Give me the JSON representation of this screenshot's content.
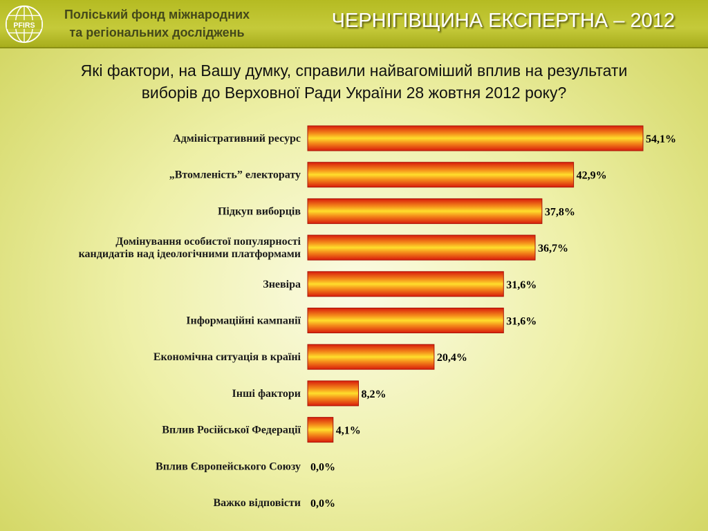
{
  "header": {
    "org_line1": "Поліський фонд міжнародних",
    "org_line2": "та регіональних досліджень",
    "logo_text": "PFIRS",
    "title": "ЧЕРНІГІВЩИНА ЕКСПЕРТНА – 2012"
  },
  "question": {
    "line1": "Які фактори, на Вашу думку, справили найвагоміший вплив на результати",
    "line2": "виборів до Верховної Ради України 28 жовтня 2012 року?"
  },
  "colors": {
    "bar_edge": "#d81c0c",
    "bar_mid": "#ffde2c",
    "bar_orange": "#f48a1a"
  },
  "chart_data": {
    "type": "bar",
    "orientation": "horizontal",
    "title": "",
    "xlabel": "",
    "ylabel": "",
    "xlim": [
      0,
      54.1
    ],
    "grid": false,
    "legend": "none",
    "categories": [
      [
        "Адміністративний ресурс"
      ],
      [
        "„Втомленість” електорату"
      ],
      [
        "Підкуп виборців"
      ],
      [
        "Домінування особистої популярності",
        "кандидатів над ідеологічними платформами"
      ],
      [
        "Зневіра"
      ],
      [
        "Інформаційні кампанії"
      ],
      [
        "Економічна ситуація в країні"
      ],
      [
        "Інші фактори"
      ],
      [
        "Вплив Російської Федерації"
      ],
      [
        "Вплив Європейського Союзу"
      ],
      [
        "Важко відповісти"
      ]
    ],
    "values": [
      54.1,
      42.9,
      37.8,
      36.7,
      31.6,
      31.6,
      20.4,
      8.2,
      4.1,
      0.0,
      0.0
    ],
    "value_labels": [
      "54,1%",
      "42,9%",
      "37,8%",
      "36,7%",
      "31,6%",
      "31,6%",
      "20,4%",
      "8,2%",
      "4,1%",
      "0,0%",
      "0,0%"
    ]
  }
}
